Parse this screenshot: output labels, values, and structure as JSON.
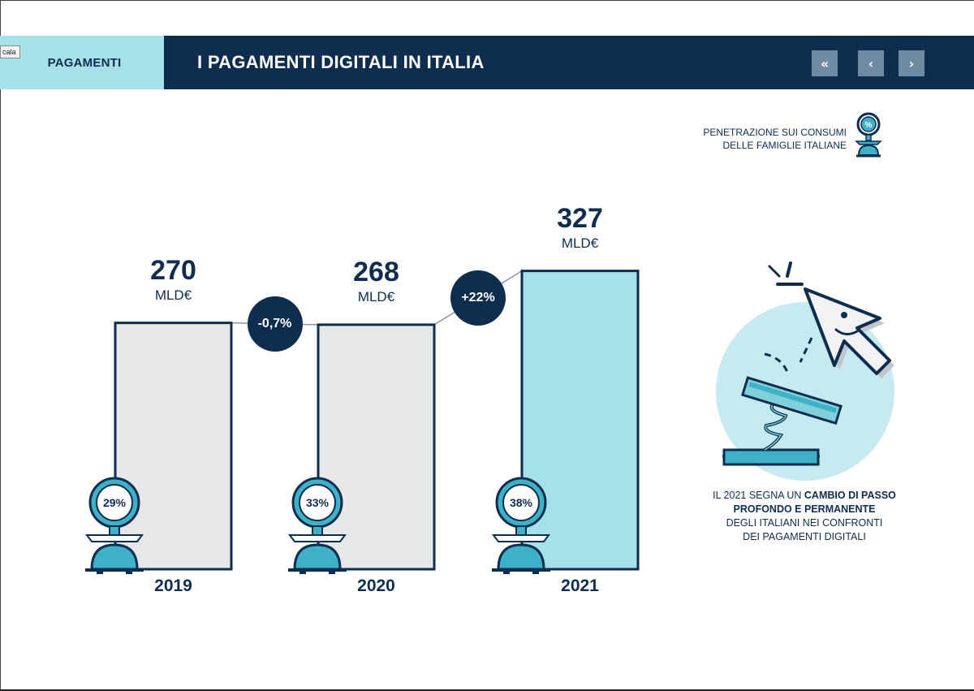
{
  "header": {
    "section_label": "PAGAMENTI",
    "title": "I PAGAMENTI DIGITALI IN ITALIA",
    "nav": {
      "first": "«",
      "prev": "‹",
      "next": "›"
    }
  },
  "tooltip": "cala",
  "legend": {
    "line1": "PENETRAZIONE SUI CONSUMI",
    "line2": "DELLE FAMIGLIE ITALIANE",
    "icon": "scale-percent-icon"
  },
  "chart_data": {
    "type": "bar",
    "categories": [
      "2019",
      "2020",
      "2021"
    ],
    "values": [
      270,
      268,
      327
    ],
    "value_labels": [
      "270",
      "268",
      "327"
    ],
    "unit": "MLD€",
    "penetration": [
      "29%",
      "33%",
      "38%"
    ],
    "changes": [
      "-0,7%",
      "+22%"
    ],
    "colors": {
      "bar_default": "#e6e7e9",
      "bar_highlight": "#a6e1ea",
      "outline": "#0e2d4f",
      "accent": "#3fb1c6"
    },
    "ylim": [
      0,
      340
    ]
  },
  "caption": {
    "pre": "IL 2021 SEGNA UN ",
    "bold1": "CAMBIO DI PASSO",
    "bold2": "PROFONDO E PERMANENTE",
    "line3": "DEGLI ITALIANI NEI CONFRONTI",
    "line4": "DEI PAGAMENTI DIGITALI"
  },
  "illustration": {
    "icon": "cursor-spring-button-icon"
  }
}
